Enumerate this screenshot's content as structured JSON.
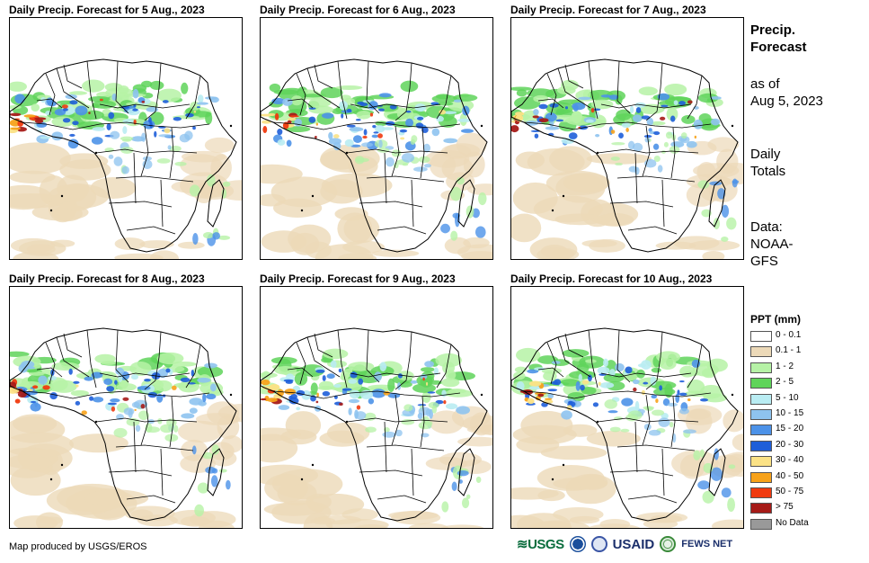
{
  "panels": [
    {
      "title": "Daily Precip. Forecast for 5 Aug., 2023",
      "intensity": 0.9
    },
    {
      "title": "Daily Precip. Forecast for 6 Aug., 2023",
      "intensity": 1.0
    },
    {
      "title": "Daily Precip. Forecast for 7 Aug., 2023",
      "intensity": 0.85
    },
    {
      "title": "Daily Precip. Forecast for 8 Aug., 2023",
      "intensity": 0.9
    },
    {
      "title": "Daily Precip. Forecast for 9 Aug., 2023",
      "intensity": 0.95
    },
    {
      "title": "Daily Precip. Forecast for 10 Aug., 2023",
      "intensity": 0.9
    }
  ],
  "side_panel": {
    "title_line1": "Precip.",
    "title_line2": "Forecast",
    "asof_line1": "as of",
    "asof_line2": "Aug 5, 2023",
    "totals_line1": "Daily",
    "totals_line2": "Totals",
    "data_line1": "Data:",
    "data_line2": "NOAA-",
    "data_line3": "GFS"
  },
  "legend": {
    "title": "PPT (mm)",
    "items": [
      {
        "label": "0 - 0.1",
        "color": "#ffffff"
      },
      {
        "label": "0.1 - 1",
        "color": "#ecd9b8"
      },
      {
        "label": "1 - 2",
        "color": "#b6f2a6"
      },
      {
        "label": "2 - 5",
        "color": "#5fd45a"
      },
      {
        "label": "5 - 10",
        "color": "#b9ecf2"
      },
      {
        "label": "10 - 15",
        "color": "#8ec3ef"
      },
      {
        "label": "15 - 20",
        "color": "#4c92e8"
      },
      {
        "label": "20 - 30",
        "color": "#1e5ed9"
      },
      {
        "label": "30 - 40",
        "color": "#fbe286"
      },
      {
        "label": "40 - 50",
        "color": "#f7a21a"
      },
      {
        "label": "50 - 75",
        "color": "#f03a0f"
      },
      {
        "label": "> 75",
        "color": "#a61b18"
      },
      {
        "label": "No Data",
        "color": "#999999"
      }
    ]
  },
  "footer": {
    "credit": "Map produced by USGS/EROS",
    "logos": {
      "usgs": "USGS",
      "usaid": "USAID",
      "fews": "FEWS NET"
    }
  }
}
